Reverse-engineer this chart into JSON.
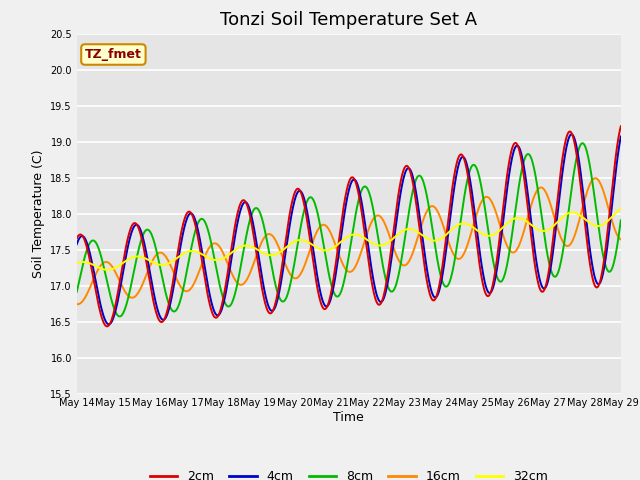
{
  "title": "Tonzi Soil Temperature Set A",
  "xlabel": "Time",
  "ylabel": "Soil Temperature (C)",
  "annotation": "TZ_fmet",
  "ylim": [
    15.5,
    20.5
  ],
  "series_colors": {
    "2cm": "#dd0000",
    "4cm": "#0000cc",
    "8cm": "#00bb00",
    "16cm": "#ff8800",
    "32cm": "#ffff00"
  },
  "series_labels": [
    "2cm",
    "4cm",
    "8cm",
    "16cm",
    "32cm"
  ],
  "x_tick_labels": [
    "May 14",
    "May 15",
    "May 16",
    "May 17",
    "May 18",
    "May 19",
    "May 20",
    "May 21",
    "May 22",
    "May 23",
    "May 24",
    "May 25",
    "May 26",
    "May 27",
    "May 28",
    "May 29"
  ],
  "plot_bg": "#e5e5e5",
  "fig_bg": "#f0f0f0",
  "grid_color": "#ffffff",
  "title_fontsize": 13,
  "axis_fontsize": 9,
  "tick_fontsize": 7,
  "legend_fontsize": 9,
  "linewidth": 1.4
}
